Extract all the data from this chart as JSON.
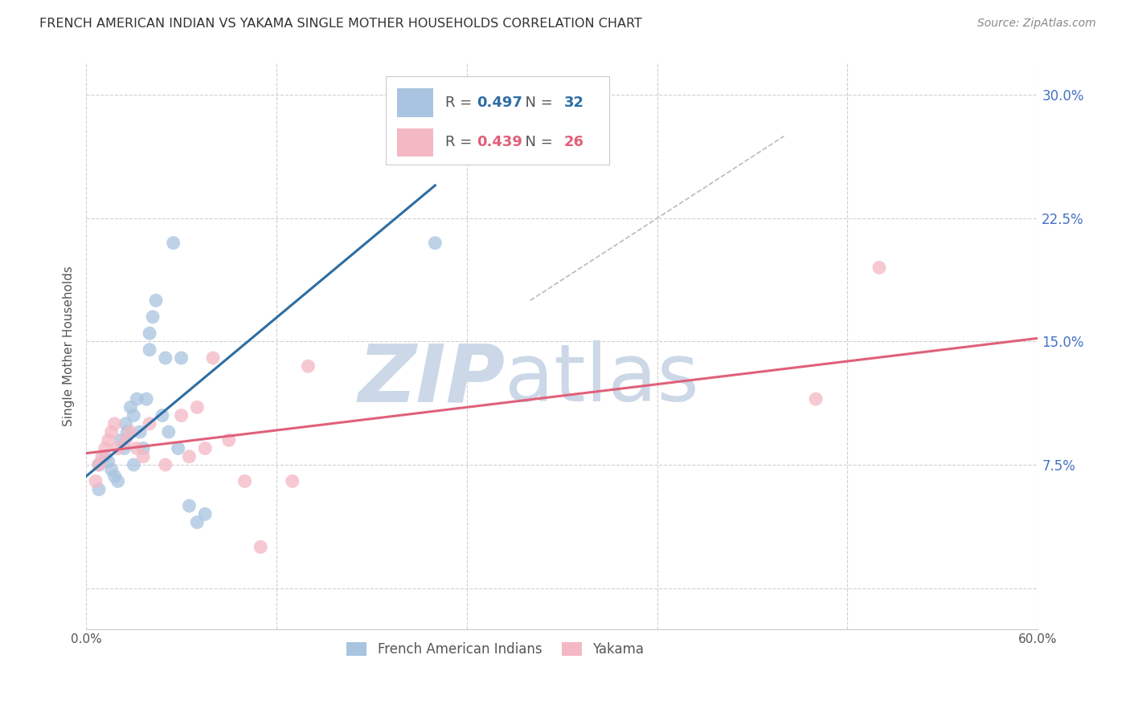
{
  "title": "FRENCH AMERICAN INDIAN VS YAKAMA SINGLE MOTHER HOUSEHOLDS CORRELATION CHART",
  "source": "Source: ZipAtlas.com",
  "ylabel": "Single Mother Households",
  "xlim": [
    0.0,
    0.6
  ],
  "ylim": [
    -0.025,
    0.32
  ],
  "yticks": [
    0.0,
    0.075,
    0.15,
    0.225,
    0.3
  ],
  "ytick_labels": [
    "",
    "7.5%",
    "15.0%",
    "22.5%",
    "30.0%"
  ],
  "xticks": [
    0.0,
    0.12,
    0.24,
    0.36,
    0.48,
    0.6
  ],
  "xtick_labels": [
    "0.0%",
    "",
    "",
    "",
    "",
    "60.0%"
  ],
  "blue_R": 0.497,
  "blue_N": 32,
  "pink_R": 0.439,
  "pink_N": 26,
  "blue_color": "#a8c4e0",
  "blue_line_color": "#2e6da4",
  "pink_color": "#f4b8c4",
  "pink_line_color": "#e0607a",
  "watermark_zip": "ZIP",
  "watermark_atlas": "atlas",
  "watermark_color": "#ccd8e8",
  "background_color": "#ffffff",
  "grid_color": "#d0d0d0",
  "blue_scatter_x": [
    0.008,
    0.012,
    0.014,
    0.016,
    0.018,
    0.02,
    0.022,
    0.024,
    0.025,
    0.026,
    0.028,
    0.03,
    0.03,
    0.032,
    0.034,
    0.036,
    0.038,
    0.04,
    0.04,
    0.042,
    0.044,
    0.048,
    0.05,
    0.052,
    0.055,
    0.058,
    0.06,
    0.065,
    0.07,
    0.075,
    0.22,
    0.008
  ],
  "blue_scatter_y": [
    0.075,
    0.08,
    0.077,
    0.072,
    0.068,
    0.065,
    0.09,
    0.085,
    0.1,
    0.095,
    0.11,
    0.105,
    0.075,
    0.115,
    0.095,
    0.085,
    0.115,
    0.155,
    0.145,
    0.165,
    0.175,
    0.105,
    0.14,
    0.095,
    0.21,
    0.085,
    0.14,
    0.05,
    0.04,
    0.045,
    0.21,
    0.06
  ],
  "pink_scatter_x": [
    0.006,
    0.008,
    0.01,
    0.012,
    0.014,
    0.016,
    0.018,
    0.02,
    0.025,
    0.028,
    0.032,
    0.036,
    0.04,
    0.05,
    0.06,
    0.065,
    0.07,
    0.075,
    0.08,
    0.09,
    0.1,
    0.11,
    0.13,
    0.14,
    0.46,
    0.5
  ],
  "pink_scatter_y": [
    0.065,
    0.075,
    0.08,
    0.085,
    0.09,
    0.095,
    0.1,
    0.085,
    0.09,
    0.095,
    0.085,
    0.08,
    0.1,
    0.075,
    0.105,
    0.08,
    0.11,
    0.085,
    0.14,
    0.09,
    0.065,
    0.025,
    0.065,
    0.135,
    0.115,
    0.195
  ],
  "blue_line_x": [
    0.0,
    0.22
  ],
  "blue_line_y": [
    0.068,
    0.245
  ],
  "pink_line_x": [
    0.0,
    0.6
  ],
  "pink_line_y": [
    0.082,
    0.152
  ],
  "diag_line_x": [
    0.28,
    0.44
  ],
  "diag_line_y": [
    0.175,
    0.275
  ]
}
